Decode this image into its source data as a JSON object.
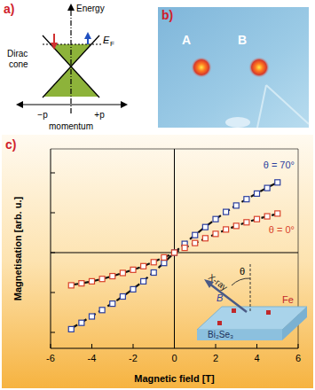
{
  "panel_a": {
    "label": "a)",
    "y_axis": "Energy",
    "cone_label": [
      "Dirac",
      "cone"
    ],
    "fermi_level": {
      "main": "E",
      "sub": "F"
    },
    "momentum_neg": "−p",
    "momentum_pos": "+p",
    "x_axis": "momentum"
  },
  "panel_b": {
    "label": "b)",
    "spots": [
      "A",
      "B"
    ]
  },
  "chart_data": {
    "type": "scatter",
    "panel_label": "c)",
    "x_label": "Magnetic field [T]",
    "y_label": "Magnetisation [arb. u.]",
    "x": [
      -5,
      -4.5,
      -4,
      -3.5,
      -3,
      -2.5,
      -2,
      -1.5,
      -1,
      -0.5,
      0,
      0.5,
      1,
      1.5,
      2,
      2.5,
      3,
      3.5,
      4,
      4.5,
      5
    ],
    "series": [
      {
        "name": "θ = 70°",
        "color": "#2b3f9e",
        "marker": "square",
        "values": [
          -1.92,
          -1.76,
          -1.6,
          -1.44,
          -1.28,
          -1.1,
          -0.92,
          -0.72,
          -0.5,
          -0.26,
          0,
          0.22,
          0.44,
          0.64,
          0.84,
          1.02,
          1.18,
          1.34,
          1.48,
          1.62,
          1.76
        ],
        "fit": [
          -1.9,
          -1.75,
          -1.59,
          -1.43,
          -1.27,
          -1.1,
          -0.91,
          -0.71,
          -0.49,
          -0.25,
          0,
          0.23,
          0.44,
          0.65,
          0.84,
          1.02,
          1.19,
          1.34,
          1.49,
          1.63,
          1.76
        ]
      },
      {
        "name": "θ = 0°",
        "color": "#d9432b",
        "marker": "square",
        "values": [
          -0.82,
          -0.77,
          -0.72,
          -0.66,
          -0.59,
          -0.51,
          -0.43,
          -0.34,
          -0.24,
          -0.12,
          0,
          0.12,
          0.24,
          0.36,
          0.47,
          0.58,
          0.67,
          0.76,
          0.84,
          0.91,
          0.98
        ],
        "fit": [
          -0.81,
          -0.77,
          -0.72,
          -0.66,
          -0.59,
          -0.51,
          -0.43,
          -0.34,
          -0.23,
          -0.12,
          0,
          0.12,
          0.24,
          0.35,
          0.47,
          0.57,
          0.67,
          0.76,
          0.84,
          0.91,
          0.97
        ]
      }
    ],
    "xlim": [
      -6,
      6
    ],
    "xticks": [
      -6,
      -4,
      -2,
      0,
      2,
      4,
      6
    ],
    "ylim": [
      -2.4,
      2.6
    ],
    "yticks": [
      -2,
      -1,
      0,
      1,
      2
    ],
    "tick_labels": "x",
    "grid": false,
    "inset": {
      "beam": "X-ray",
      "angle": "θ",
      "field": "B",
      "adatom": "Fe",
      "substrate": "Bi₂Se₃"
    }
  }
}
